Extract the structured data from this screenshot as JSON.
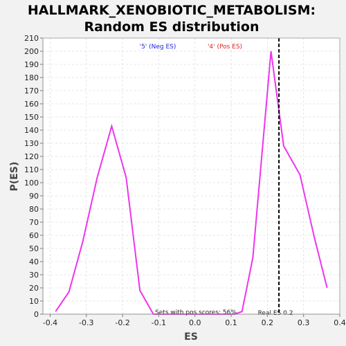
{
  "chart_data": {
    "type": "line",
    "title_line1": "HALLMARK_XENOBIOTIC_METABOLISM:",
    "title_line2": "Random ES distribution",
    "xlabel": "ES",
    "ylabel": "P(ES)",
    "xlim": [
      -0.42,
      0.4
    ],
    "ylim": [
      0,
      210
    ],
    "xticks": [
      -0.4,
      -0.3,
      -0.2,
      -0.1,
      0.0,
      0.1,
      0.2,
      0.3,
      0.4
    ],
    "xtick_labels": [
      "-0.4",
      "-0.3",
      "-0.2",
      "-0.1",
      "0.0",
      "0.1",
      "0.2",
      "0.3",
      "0.4"
    ],
    "yticks": [
      0,
      10,
      20,
      30,
      40,
      50,
      60,
      70,
      80,
      90,
      100,
      110,
      120,
      130,
      140,
      150,
      160,
      170,
      180,
      190,
      200,
      210
    ],
    "grid": true,
    "legend_neg": "'5' (Neg ES)",
    "legend_pos": "'4' (Pos ES)",
    "series_color": "#ee33ee",
    "neg_color": "#2222dd",
    "pos_color": "#dd2222",
    "x": [
      -0.385,
      -0.348,
      -0.31,
      -0.27,
      -0.23,
      -0.19,
      -0.152,
      -0.115,
      0.11,
      0.13,
      0.16,
      0.21,
      0.245,
      0.29,
      0.33,
      0.365
    ],
    "y": [
      2,
      17,
      55,
      104,
      143,
      104,
      18,
      0,
      0,
      2,
      43,
      200,
      128,
      106,
      58,
      20
    ],
    "real_es": 0.232,
    "real_es_label": "Real ES 0.2",
    "pos_scores_label": "Sets with pos scores: 56%"
  }
}
